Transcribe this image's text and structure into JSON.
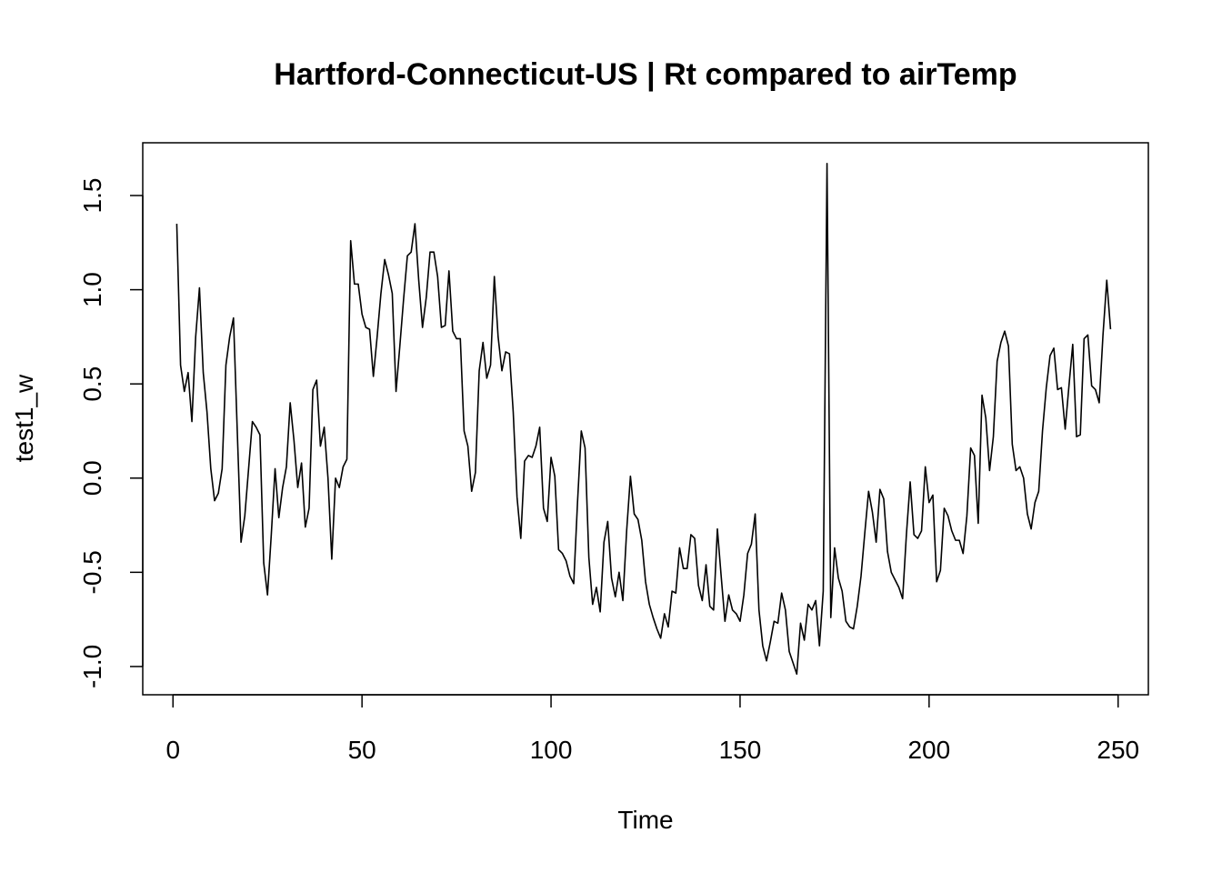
{
  "chart_data": {
    "type": "line",
    "title": "Hartford-Connecticut-US | Rt compared to airTemp",
    "xlabel": "Time",
    "ylabel": "test1_w",
    "xlim": [
      -8,
      258
    ],
    "ylim": [
      -1.15,
      1.78
    ],
    "x_ticks": [
      {
        "value": 0,
        "label": "0"
      },
      {
        "value": 50,
        "label": "50"
      },
      {
        "value": 100,
        "label": "100"
      },
      {
        "value": 150,
        "label": "150"
      },
      {
        "value": 200,
        "label": "200"
      },
      {
        "value": 250,
        "label": "250"
      }
    ],
    "y_ticks": [
      {
        "value": -1.0,
        "label": "-1.0"
      },
      {
        "value": -0.5,
        "label": "-0.5"
      },
      {
        "value": 0.0,
        "label": "0.0"
      },
      {
        "value": 0.5,
        "label": "0.5"
      },
      {
        "value": 1.0,
        "label": "1.0"
      },
      {
        "value": 1.5,
        "label": "1.5"
      }
    ],
    "grid": false,
    "line_color": "#000000",
    "series": [
      {
        "x_start": 1,
        "x_step": 1,
        "values": [
          1.35,
          0.6,
          0.46,
          0.56,
          0.3,
          0.75,
          1.01,
          0.56,
          0.35,
          0.05,
          -0.12,
          -0.08,
          0.05,
          0.6,
          0.75,
          0.85,
          0.25,
          -0.34,
          -0.2,
          0.05,
          0.3,
          0.27,
          0.23,
          -0.45,
          -0.62,
          -0.3,
          0.05,
          -0.21,
          -0.05,
          0.06,
          0.4,
          0.2,
          -0.05,
          0.08,
          -0.26,
          -0.16,
          0.47,
          0.52,
          0.17,
          0.27,
          0.0,
          -0.43,
          0.0,
          -0.05,
          0.06,
          0.1,
          1.26,
          1.03,
          1.03,
          0.87,
          0.8,
          0.79,
          0.54,
          0.75,
          0.98,
          1.16,
          1.08,
          0.98,
          0.46,
          0.7,
          0.95,
          1.18,
          1.2,
          1.35,
          1.05,
          0.8,
          0.96,
          1.2,
          1.2,
          1.07,
          0.8,
          0.81,
          1.1,
          0.78,
          0.74,
          0.74,
          0.25,
          0.17,
          -0.07,
          0.03,
          0.57,
          0.72,
          0.53,
          0.6,
          1.07,
          0.75,
          0.57,
          0.67,
          0.66,
          0.35,
          -0.1,
          -0.32,
          0.09,
          0.12,
          0.11,
          0.17,
          0.27,
          -0.16,
          -0.23,
          0.11,
          0.01,
          -0.38,
          -0.4,
          -0.44,
          -0.52,
          -0.56,
          -0.13,
          0.25,
          0.16,
          -0.42,
          -0.67,
          -0.58,
          -0.71,
          -0.34,
          -0.23,
          -0.53,
          -0.63,
          -0.5,
          -0.65,
          -0.28,
          0.01,
          -0.19,
          -0.22,
          -0.33,
          -0.55,
          -0.67,
          -0.74,
          -0.8,
          -0.85,
          -0.72,
          -0.79,
          -0.6,
          -0.61,
          -0.37,
          -0.48,
          -0.48,
          -0.3,
          -0.32,
          -0.57,
          -0.65,
          -0.46,
          -0.68,
          -0.7,
          -0.27,
          -0.52,
          -0.76,
          -0.62,
          -0.7,
          -0.72,
          -0.76,
          -0.62,
          -0.4,
          -0.35,
          -0.19,
          -0.7,
          -0.89,
          -0.97,
          -0.87,
          -0.76,
          -0.77,
          -0.61,
          -0.7,
          -0.92,
          -0.98,
          -1.04,
          -0.77,
          -0.86,
          -0.67,
          -0.7,
          -0.65,
          -0.89,
          -0.6,
          1.67,
          -0.74,
          -0.37,
          -0.53,
          -0.6,
          -0.76,
          -0.79,
          -0.8,
          -0.68,
          -0.52,
          -0.29,
          -0.07,
          -0.18,
          -0.34,
          -0.06,
          -0.11,
          -0.39,
          -0.5,
          -0.54,
          -0.58,
          -0.64,
          -0.3,
          -0.02,
          -0.3,
          -0.32,
          -0.28,
          0.06,
          -0.13,
          -0.09,
          -0.55,
          -0.49,
          -0.16,
          -0.2,
          -0.28,
          -0.33,
          -0.33,
          -0.4,
          -0.2,
          0.16,
          0.12,
          -0.24,
          0.44,
          0.32,
          0.04,
          0.22,
          0.62,
          0.72,
          0.78,
          0.7,
          0.18,
          0.04,
          0.06,
          0.0,
          -0.19,
          -0.27,
          -0.13,
          -0.07,
          0.25,
          0.48,
          0.65,
          0.69,
          0.47,
          0.48,
          0.26,
          0.49,
          0.71,
          0.22,
          0.23,
          0.74,
          0.76,
          0.49,
          0.47,
          0.4,
          0.76,
          1.05,
          0.79
        ]
      }
    ]
  }
}
